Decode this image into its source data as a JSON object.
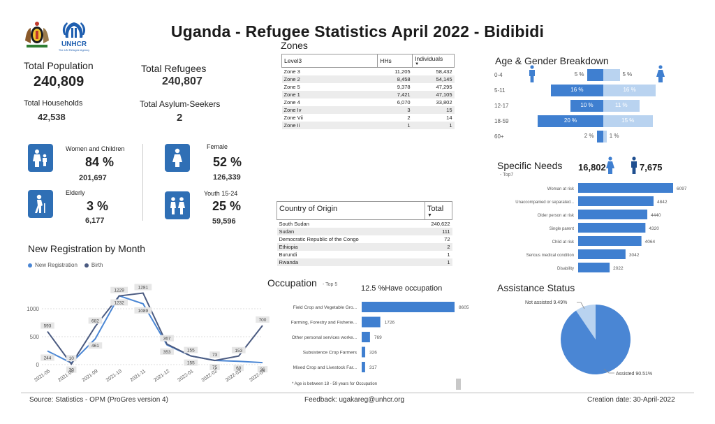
{
  "title": "Uganda - Refugee Statistics April 2022 - Bidibidi",
  "logos": {
    "unhcr_text": "UNHCR",
    "unhcr_sub": "The UN Refugee Agency"
  },
  "summary": {
    "total_population_label": "Total Population",
    "total_population": "240,809",
    "total_refugees_label": "Total Refugees",
    "total_refugees": "240,807",
    "total_households_label": "Total Households",
    "total_households": "42,538",
    "total_asylum_label": "Total Asylum-Seekers",
    "total_asylum": "2"
  },
  "demographics": {
    "women_children": {
      "label": "Women and Children",
      "pct": "84 %",
      "num": "201,697"
    },
    "female": {
      "label": "Female",
      "pct": "52 %",
      "num": "126,339"
    },
    "elderly": {
      "label": "Elderly",
      "pct": "3 %",
      "num": "6,177"
    },
    "youth": {
      "label": "Youth 15-24",
      "pct": "25 %",
      "num": "59,596"
    }
  },
  "zones": {
    "title": "Zones",
    "headers": [
      "Level3",
      "HHs",
      "Individuals"
    ],
    "rows": [
      [
        "Zone 3",
        "11,205",
        "58,432"
      ],
      [
        "Zone 2",
        "8,458",
        "54,145"
      ],
      [
        "Zone 5",
        "9,378",
        "47,295"
      ],
      [
        "Zone 1",
        "7,421",
        "47,105"
      ],
      [
        "Zone 4",
        "6,070",
        "33,802"
      ],
      [
        "Zone Iv",
        "3",
        "15"
      ],
      [
        "Zone Vii",
        "2",
        "14"
      ],
      [
        "Zone Ii",
        "1",
        "1"
      ]
    ]
  },
  "origin": {
    "headers": [
      "Country of Origin",
      "Total"
    ],
    "rows": [
      [
        "South Sudan",
        "240,622"
      ],
      [
        "Sudan",
        "111"
      ],
      [
        "Democratic Republic of the Congo",
        "72"
      ],
      [
        "Ethiopia",
        "2"
      ],
      [
        "Burundi",
        "1"
      ],
      [
        "Rwanda",
        "1"
      ]
    ]
  },
  "age_gender": {
    "title": "Age & Gender Breakdown",
    "colors": {
      "male": "#3f7fd0",
      "female": "#b9d3f0"
    },
    "rows": [
      {
        "label": "0-4",
        "male": 5,
        "female": 5,
        "male_label": "5 %",
        "female_label": "5 %"
      },
      {
        "label": "5-11",
        "male": 16,
        "female": 16,
        "male_label": "16 %",
        "female_label": "16 %"
      },
      {
        "label": "12-17",
        "male": 10,
        "female": 11,
        "male_label": "10 %",
        "female_label": "11 %"
      },
      {
        "label": "18-59",
        "male": 20,
        "female": 15,
        "male_label": "20 %",
        "female_label": "15 %"
      },
      {
        "label": "60+",
        "male": 2,
        "female": 1,
        "male_label": "2 %",
        "female_label": "1 %"
      }
    ]
  },
  "specific_needs": {
    "title": "Specific Needs",
    "subtitle": "- Top7",
    "female_count": "16,802",
    "male_count": "7,675",
    "chart_data": {
      "type": "bar",
      "categories": [
        "Woman at risk",
        "Unaccompanied or separated...",
        "Older person at risk",
        "Single parent",
        "Child at risk",
        "Serious medical condition",
        "Disability"
      ],
      "values": [
        6097,
        4842,
        4440,
        4320,
        4064,
        3042,
        2022
      ],
      "labels": [
        "6097",
        "4842",
        "4440",
        "4320",
        "4064",
        "3042",
        "2022"
      ]
    }
  },
  "registration": {
    "title": "New Registration by Month",
    "chart_data": {
      "type": "line",
      "categories": [
        "2021-05",
        "2021-06",
        "2021-09",
        "2021-10",
        "2021-11",
        "2021-12",
        "2022-01",
        "2022-02",
        "2022-03",
        "2022-04"
      ],
      "series": [
        {
          "name": "New Registration",
          "values": [
            244,
            30,
            461,
            1232,
            1089,
            353,
            155,
            75,
            60,
            36
          ],
          "color": "#4a86d4"
        },
        {
          "name": "Birth",
          "values": [
            593,
            10,
            682,
            1229,
            1281,
            367,
            155,
            73,
            153,
            700
          ],
          "color": "#4a5a80"
        }
      ],
      "yticks": [
        0,
        500,
        1000
      ],
      "ylim": [
        0,
        1400
      ]
    }
  },
  "occupation": {
    "title": "Occupation",
    "subtitle": "- Top 5",
    "pct_label": "12.5 %Have occupation",
    "note": "* Age is between 18 - 59 years for Occupation",
    "chart_data": {
      "type": "bar",
      "categories": [
        "Field Crop and Vegetable Gro...",
        "Farming, Forestry and Fisherie...",
        "Other personal services worke...",
        "Subsistence Crop Farmers",
        "Mixed Crop and Livestock Far..."
      ],
      "values": [
        8605,
        1726,
        769,
        326,
        317
      ],
      "labels": [
        "8605",
        "1726",
        "769",
        "326",
        "317"
      ]
    }
  },
  "assistance": {
    "title": "Assistance Status",
    "chart_data": {
      "type": "pie",
      "categories": [
        "Assisted",
        "Not assisted"
      ],
      "values": [
        90.51,
        9.49
      ],
      "labels": [
        "Assisted 90.51%",
        "Not assisted 9.49%"
      ],
      "colors": [
        "#4a86d4",
        "#b9d3f0"
      ]
    }
  },
  "footer": {
    "source": "Source: Statistics - OPM (ProGres version 4)",
    "feedback": "Feedback: ugakareg@unhcr.org",
    "creation": "Creation date: 30-April-2022"
  }
}
